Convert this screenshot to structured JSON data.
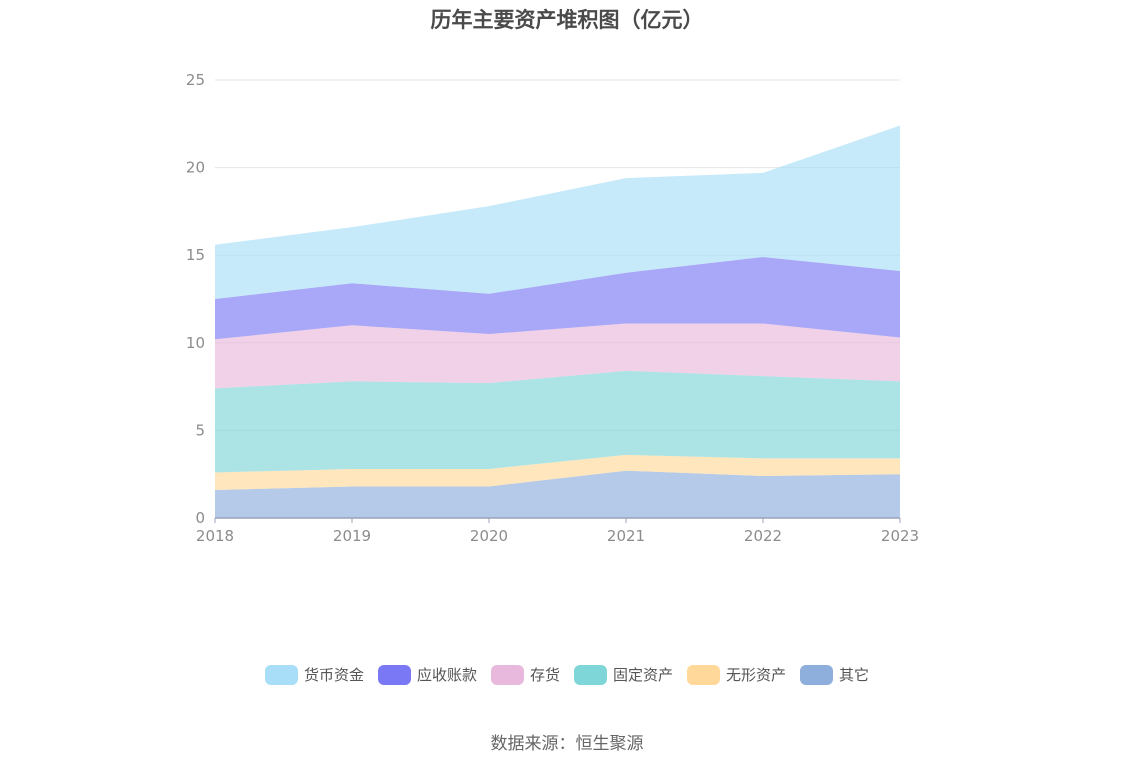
{
  "source_text": "数据来源：恒生聚源",
  "chart_data": {
    "type": "area",
    "stacked": true,
    "title": "历年主要资产堆积图（亿元）",
    "xlabel": "",
    "ylabel": "",
    "categories": [
      "2018",
      "2019",
      "2020",
      "2021",
      "2022",
      "2023"
    ],
    "ylim": [
      0,
      25
    ],
    "yticks": [
      0,
      5,
      10,
      15,
      20,
      25
    ],
    "grid": true,
    "legend_position": "bottom",
    "series": [
      {
        "name": "其它",
        "color": "#8eaedc",
        "values": [
          1.6,
          1.8,
          1.8,
          2.7,
          2.4,
          2.5
        ]
      },
      {
        "name": "无形资产",
        "color": "#ffd89a",
        "values": [
          1.0,
          1.0,
          1.0,
          0.9,
          1.0,
          0.9
        ]
      },
      {
        "name": "固定资产",
        "color": "#7fd6d8",
        "values": [
          4.8,
          5.0,
          4.9,
          4.8,
          4.7,
          4.4
        ]
      },
      {
        "name": "存货",
        "color": "#e8b9dc",
        "values": [
          2.8,
          3.2,
          2.8,
          2.7,
          3.0,
          2.5
        ]
      },
      {
        "name": "应收账款",
        "color": "#7b78f5",
        "values": [
          2.3,
          2.4,
          2.3,
          2.9,
          3.8,
          3.8
        ]
      },
      {
        "name": "货币资金",
        "color": "#a8def8",
        "values": [
          3.1,
          3.2,
          5.0,
          5.4,
          4.8,
          8.3
        ]
      }
    ],
    "legend_order": [
      "货币资金",
      "应收账款",
      "存货",
      "固定资产",
      "无形资产",
      "其它"
    ]
  }
}
